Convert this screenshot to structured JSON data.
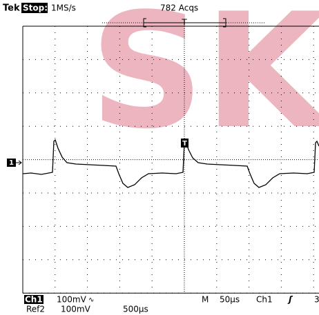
{
  "header": {
    "brand": "Tek",
    "state": "Stop:",
    "rate": "1MS/s",
    "acquisitions": "782 Acqs",
    "trigger_position": "T"
  },
  "watermark": "SK",
  "markers": {
    "channel": "1",
    "trigger": "T"
  },
  "footer": {
    "channel": "Ch1",
    "scale": "100mV",
    "coupling": "∿",
    "ref": "Ref2",
    "ref_scale": "100mV",
    "ref_time": "500µs",
    "timebase_label": "M",
    "timebase": "50µs",
    "trigger_source": "Ch1",
    "slope": "ʃ",
    "level": "3"
  }
}
